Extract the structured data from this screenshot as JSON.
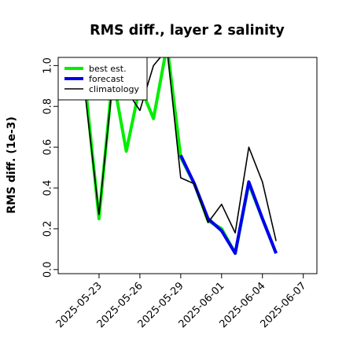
{
  "chart_data": {
    "type": "line",
    "title": "RMS diff., layer 2 salinity",
    "xlabel": "",
    "ylabel": "RMS diff. (1e-3)",
    "xlim": [
      "2025-05-20",
      "2025-06-08"
    ],
    "ylim": [
      -0.02,
      1.04
    ],
    "yticks": [
      0.0,
      0.2,
      0.4,
      0.6,
      0.8,
      1.0
    ],
    "ytick_labels": [
      "0.0",
      "0.2",
      "0.4",
      "0.6",
      "0.8",
      "1.0"
    ],
    "xticks": [
      "2025-05-23",
      "2025-05-26",
      "2025-05-29",
      "2025-06-01",
      "2025-06-04",
      "2025-06-07"
    ],
    "xtick_labels": [
      "2025-05-23",
      "2025-05-26",
      "2025-05-29",
      "2025-06-01",
      "2025-06-04",
      "2025-06-07"
    ],
    "highlight_tick": "2025-05-29",
    "highlight_color": "#228b22",
    "legend_position": "top-left",
    "grid": false,
    "series": [
      {
        "name": "best est.",
        "color": "#00ee00",
        "points": [
          [
            "2025-05-22",
            0.9
          ],
          [
            "2025-05-23",
            0.25
          ],
          [
            "2025-05-24",
            0.95
          ],
          [
            "2025-05-25",
            0.58
          ],
          [
            "2025-05-26",
            0.9
          ],
          [
            "2025-05-27",
            0.74
          ],
          [
            "2025-05-28",
            1.1
          ],
          [
            "2025-05-29",
            0.55
          ],
          [
            "2025-05-30",
            0.42
          ],
          [
            "2025-05-31",
            0.24
          ],
          [
            "2025-06-01",
            0.2
          ],
          [
            "2025-06-02",
            0.08
          ],
          [
            "2025-06-03",
            0.42
          ],
          [
            "2025-06-04",
            0.25
          ],
          [
            "2025-06-05",
            0.08
          ]
        ]
      },
      {
        "name": "forecast",
        "color": "#0000ee",
        "points": [
          [
            "2025-05-29",
            0.56
          ],
          [
            "2025-05-30",
            0.42
          ],
          [
            "2025-05-31",
            0.25
          ],
          [
            "2025-06-01",
            0.19
          ],
          [
            "2025-06-02",
            0.08
          ],
          [
            "2025-06-03",
            0.43
          ],
          [
            "2025-06-04",
            0.25
          ],
          [
            "2025-06-05",
            0.08
          ]
        ]
      },
      {
        "name": "climatology",
        "color": "#000000",
        "points": [
          [
            "2025-05-22",
            0.85
          ],
          [
            "2025-05-23",
            0.27
          ],
          [
            "2025-05-24",
            0.92
          ],
          [
            "2025-05-25",
            0.88
          ],
          [
            "2025-05-26",
            0.78
          ],
          [
            "2025-05-27",
            1.0
          ],
          [
            "2025-05-28",
            1.08
          ],
          [
            "2025-05-29",
            0.45
          ],
          [
            "2025-05-30",
            0.42
          ],
          [
            "2025-05-31",
            0.23
          ],
          [
            "2025-06-01",
            0.32
          ],
          [
            "2025-06-02",
            0.18
          ],
          [
            "2025-06-03",
            0.6
          ],
          [
            "2025-06-04",
            0.43
          ],
          [
            "2025-06-05",
            0.14
          ]
        ]
      }
    ]
  }
}
